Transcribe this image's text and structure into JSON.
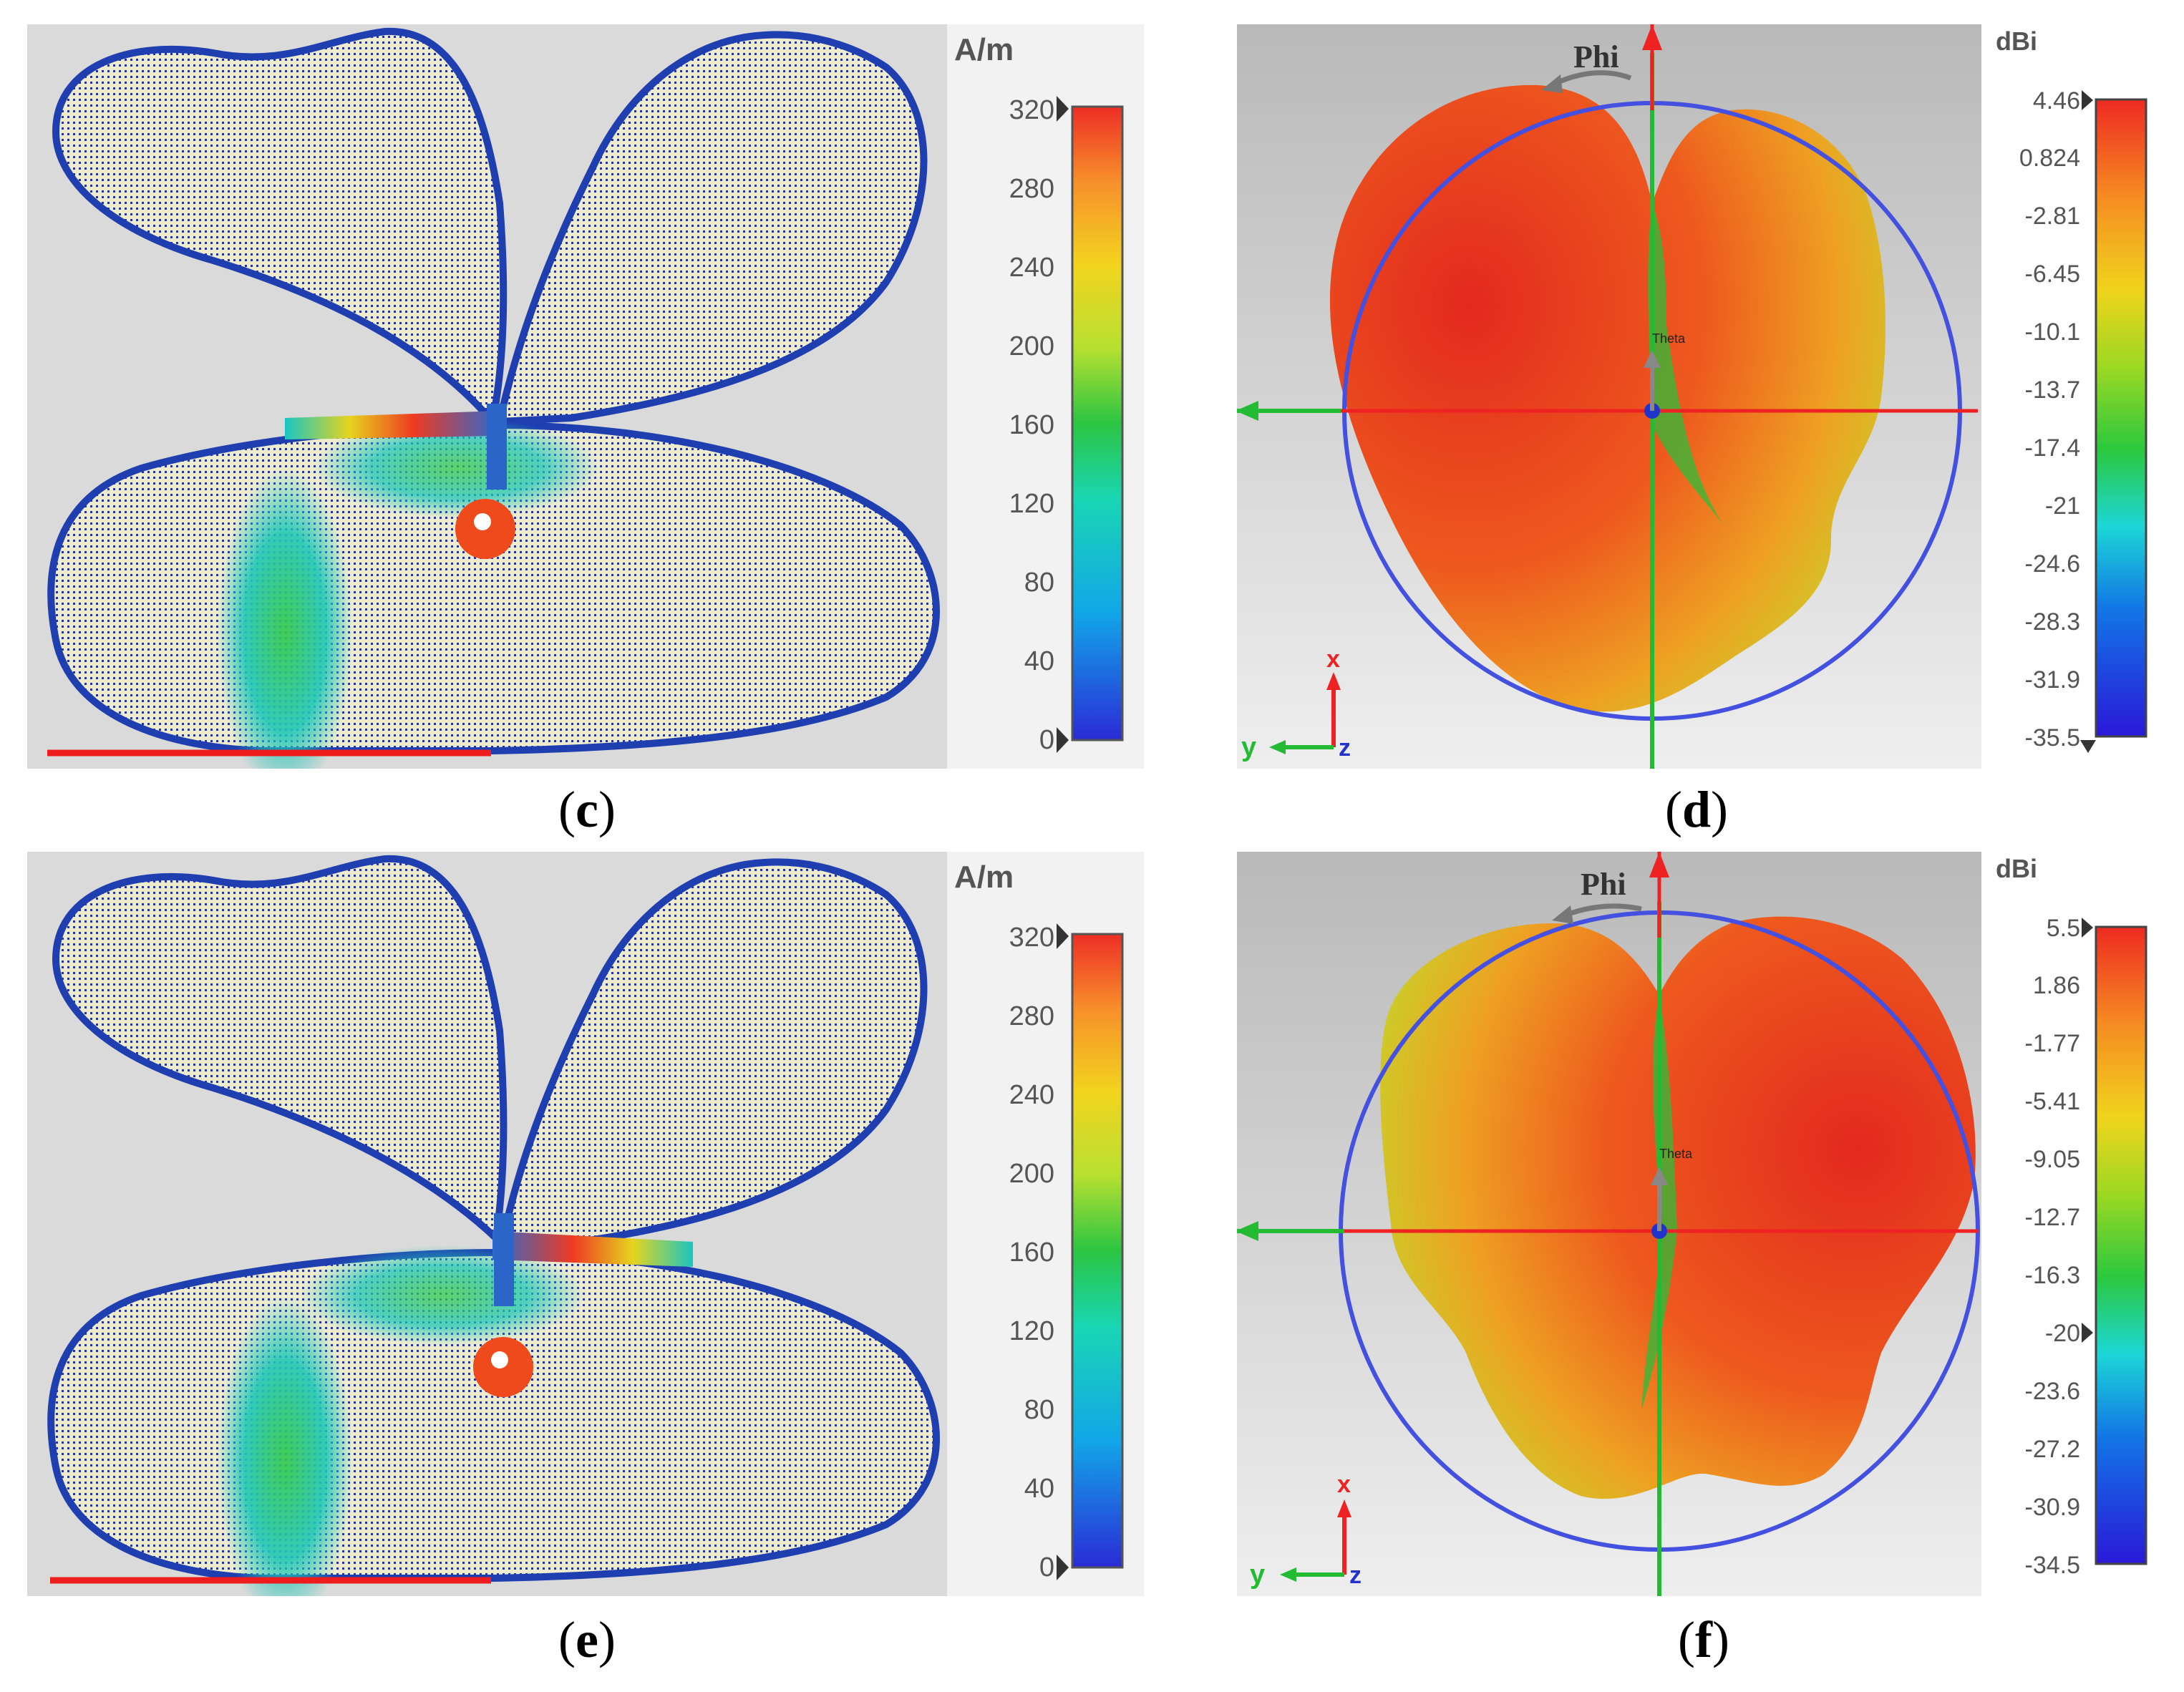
{
  "panels": [
    {
      "id": "c",
      "type": "surface-current",
      "label": "c",
      "unit": "A/m",
      "scale_ticks": [
        "320",
        "280",
        "240",
        "200",
        "160",
        "120",
        "80",
        "40",
        "0"
      ],
      "markers": [
        "max-top",
        "min-bottom"
      ]
    },
    {
      "id": "d",
      "type": "radiation-pattern",
      "label": "d",
      "unit": "dBi",
      "phi_label": "Phi",
      "theta_label": "Theta",
      "axes": {
        "x": "x",
        "y": "y",
        "z": "z"
      },
      "scale_ticks": [
        "4.46",
        "0.824",
        "-2.81",
        "-6.45",
        "-10.1",
        "-13.7",
        "-17.4",
        "-21",
        "-24.6",
        "-28.3",
        "-31.9",
        "-35.5"
      ],
      "mirrored": false
    },
    {
      "id": "e",
      "type": "surface-current",
      "label": "e",
      "unit": "A/m",
      "scale_ticks": [
        "320",
        "280",
        "240",
        "200",
        "160",
        "120",
        "80",
        "40",
        "0"
      ],
      "markers": [
        "max-top",
        "min-bottom"
      ]
    },
    {
      "id": "f",
      "type": "radiation-pattern",
      "label": "f",
      "unit": "dBi",
      "phi_label": "Phi",
      "theta_label": "Theta",
      "axes": {
        "x": "x",
        "y": "y",
        "z": "z"
      },
      "scale_ticks": [
        "5.5",
        "1.86",
        "-1.77",
        "-5.41",
        "-9.05",
        "-12.7",
        "-16.3",
        "-20",
        "-23.6",
        "-27.2",
        "-30.9",
        "-34.5"
      ],
      "mirrored": true
    }
  ],
  "colors": {
    "background_gray": "#d9d9d9",
    "cream": "#efeccf",
    "mesh_blue": "#1f3fb0",
    "axis_red": "#ee2222",
    "axis_green": "#22bb33",
    "circle_blue": "#4450e0"
  }
}
